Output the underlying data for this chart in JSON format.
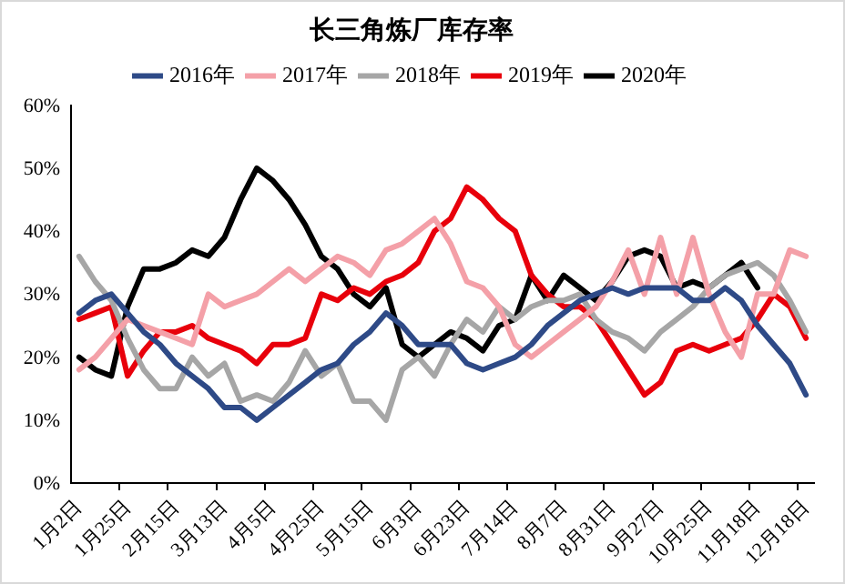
{
  "chart_data": {
    "type": "line",
    "title": "长三角炼厂库存率",
    "categories": [
      "1月2日",
      null,
      null,
      "1月25日",
      null,
      null,
      "2月15日",
      null,
      null,
      "3月13日",
      null,
      null,
      "4月5日",
      null,
      null,
      "4月25日",
      null,
      null,
      "5月15日",
      null,
      null,
      "6月3日",
      null,
      null,
      "6月23日",
      null,
      null,
      "7月14日",
      null,
      null,
      "8月7日",
      null,
      null,
      "8月31日",
      null,
      null,
      "9月27日",
      null,
      null,
      "10月25日",
      null,
      null,
      "11月18日",
      null,
      null,
      "12月18日"
    ],
    "series": [
      {
        "name": "2016年",
        "color": "#2e4a87",
        "values": [
          27,
          29,
          30,
          27,
          24,
          22,
          19,
          17,
          15,
          12,
          12,
          10,
          12,
          14,
          16,
          18,
          19,
          22,
          24,
          27,
          25,
          22,
          22,
          22,
          19,
          18,
          19,
          20,
          22,
          25,
          27,
          29,
          30,
          31,
          30,
          31,
          31,
          31,
          29,
          29,
          31,
          29,
          25,
          22,
          19,
          14
        ]
      },
      {
        "name": "2017年",
        "color": "#f4a0a8",
        "values": [
          18,
          20,
          23,
          26,
          25,
          24,
          23,
          22,
          30,
          28,
          29,
          30,
          32,
          34,
          32,
          34,
          36,
          35,
          33,
          37,
          38,
          40,
          42,
          38,
          32,
          31,
          28,
          22,
          20,
          22,
          24,
          26,
          28,
          32,
          37,
          30,
          39,
          30,
          39,
          30,
          24,
          20,
          30,
          30,
          37,
          36
        ]
      },
      {
        "name": "2018年",
        "color": "#a6a6a6",
        "values": [
          36,
          32,
          29,
          23,
          18,
          15,
          15,
          20,
          17,
          19,
          13,
          14,
          13,
          16,
          21,
          17,
          19,
          13,
          13,
          10,
          18,
          20,
          17,
          22,
          26,
          24,
          28,
          26,
          28,
          29,
          29,
          30,
          26,
          24,
          23,
          21,
          24,
          26,
          28,
          31,
          33,
          34,
          35,
          33,
          29,
          24
        ]
      },
      {
        "name": "2019年",
        "color": "#e8000b",
        "values": [
          26,
          27,
          28,
          17,
          21,
          24,
          24,
          25,
          23,
          22,
          21,
          19,
          22,
          22,
          23,
          30,
          29,
          31,
          30,
          32,
          33,
          35,
          40,
          42,
          47,
          45,
          42,
          40,
          33,
          30,
          28,
          28,
          26,
          22,
          18,
          14,
          16,
          21,
          22,
          21,
          22,
          23,
          26,
          30,
          28,
          23
        ]
      },
      {
        "name": "2020年",
        "color": "#000000",
        "values": [
          20,
          18,
          17,
          28,
          34,
          34,
          35,
          37,
          36,
          39,
          45,
          50,
          48,
          45,
          41,
          36,
          34,
          30,
          28,
          31,
          22,
          20,
          22,
          24,
          23,
          21,
          25,
          26,
          33,
          29,
          33,
          31,
          29,
          32,
          36,
          37,
          36,
          31,
          32,
          31,
          33,
          35,
          31,
          null,
          null,
          null
        ]
      }
    ],
    "ylim": [
      0,
      60
    ],
    "yticks": [
      {
        "value": 0,
        "label": "0%"
      },
      {
        "value": 10,
        "label": "10%"
      },
      {
        "value": 20,
        "label": "20%"
      },
      {
        "value": 30,
        "label": "30%"
      },
      {
        "value": 40,
        "label": "40%"
      },
      {
        "value": 50,
        "label": "50%"
      },
      {
        "value": 60,
        "label": "60%"
      }
    ],
    "legend": "top",
    "grid": false,
    "marker": "none",
    "line_style": "solid"
  }
}
